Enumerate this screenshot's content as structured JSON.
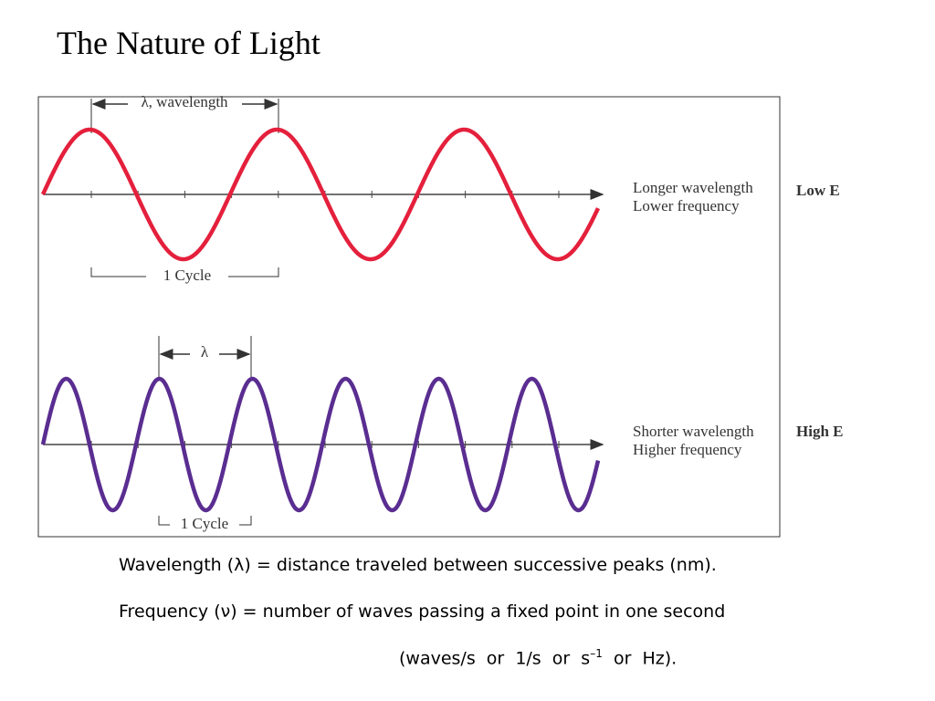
{
  "header": {
    "title": "The Nature of Light"
  },
  "figure": {
    "top_wave": {
      "wavelength_label": "λ, wavelength",
      "cycle_label": "1 Cycle",
      "description": [
        "Longer wavelength",
        "Lower frequency"
      ],
      "energy": "Low E"
    },
    "bottom_wave": {
      "wavelength_label": "λ",
      "cycle_label": "1 Cycle",
      "description": [
        "Shorter wavelength",
        "Higher frequency"
      ],
      "energy": "High E"
    }
  },
  "body": {
    "wavelength_line": "Wavelength (λ) = distance traveled between successive peaks (nm).",
    "frequency_line": "Frequency (ν) = number of waves passing a fixed point in one second",
    "units_line": {
      "before": "(waves/s  or  1/s  or  s",
      "superscript": "–1",
      "after": "  or  Hz)."
    }
  }
}
